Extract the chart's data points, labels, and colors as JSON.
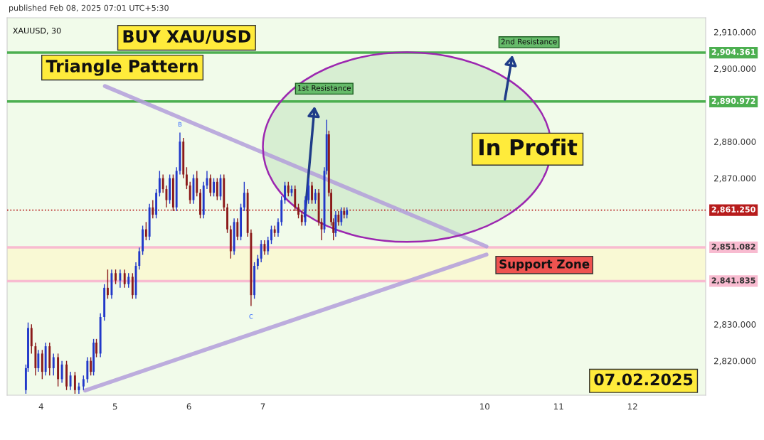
{
  "chart_data": {
    "type": "candlestick",
    "x": [
      3.794,
      3.824,
      3.87,
      3.924,
      3.962,
      4.015,
      4.061,
      4.115,
      4.168,
      4.229,
      4.282,
      4.344,
      4.397,
      4.458,
      4.511,
      4.573,
      4.626,
      4.672,
      4.71,
      4.748,
      4.802,
      4.855,
      4.901,
      4.954,
      5.008,
      5.069,
      5.13,
      5.183,
      5.237,
      5.282,
      5.328,
      5.374,
      5.42,
      5.466,
      5.511,
      5.557,
      5.603,
      5.649,
      5.695,
      5.74,
      5.786,
      5.832,
      5.878,
      5.924,
      5.969,
      6.015,
      6.061,
      6.107,
      6.153,
      6.198,
      6.244,
      6.29,
      6.336,
      6.382,
      6.427,
      6.473,
      6.519,
      6.565,
      6.611,
      6.656,
      6.702,
      6.748,
      6.794,
      6.84,
      6.885,
      6.931,
      6.977,
      7.023,
      7.069,
      7.115,
      7.16,
      7.206,
      7.252,
      7.298,
      7.344,
      7.389,
      7.435,
      7.481,
      7.527,
      7.573,
      7.618,
      7.664,
      7.71,
      7.756,
      7.794,
      7.832,
      7.863,
      7.893,
      7.924,
      7.954,
      7.985,
      8.023,
      8.061,
      8.099,
      8.137
    ],
    "ohlc": [
      [
        2812,
        2819,
        2811,
        2818
      ],
      [
        2818,
        2830.5,
        2817,
        2829
      ],
      [
        2829,
        2830,
        2822,
        2824
      ],
      [
        2824,
        2825,
        2816,
        2818
      ],
      [
        2818,
        2823,
        2817,
        2822
      ],
      [
        2822,
        2823,
        2815,
        2817
      ],
      [
        2817,
        2825,
        2816,
        2824
      ],
      [
        2824,
        2825,
        2816,
        2818
      ],
      [
        2818,
        2822,
        2816,
        2821
      ],
      [
        2821,
        2822,
        2813,
        2815
      ],
      [
        2815,
        2820,
        2814,
        2819
      ],
      [
        2819,
        2820,
        2812,
        2813
      ],
      [
        2813,
        2817,
        2812,
        2816
      ],
      [
        2816,
        2817,
        2811,
        2812
      ],
      [
        2812,
        2814,
        2811,
        2813
      ],
      [
        2813,
        2816,
        2812,
        2815
      ],
      [
        2815,
        2821,
        2814,
        2820
      ],
      [
        2820,
        2821,
        2816,
        2817
      ],
      [
        2817,
        2826,
        2816,
        2825
      ],
      [
        2825,
        2826,
        2821,
        2822
      ],
      [
        2822,
        2833,
        2821,
        2832
      ],
      [
        2832,
        2841,
        2831,
        2840
      ],
      [
        2840,
        2845,
        2837,
        2838
      ],
      [
        2838,
        2845,
        2837,
        2844
      ],
      [
        2844,
        2845,
        2841,
        2842
      ],
      [
        2842,
        2845,
        2840,
        2844
      ],
      [
        2844,
        2845,
        2840,
        2841
      ],
      [
        2841,
        2844,
        2840,
        2843
      ],
      [
        2843,
        2844,
        2837,
        2838
      ],
      [
        2838,
        2847,
        2837,
        2846
      ],
      [
        2846,
        2851,
        2845,
        2850
      ],
      [
        2850,
        2857,
        2849,
        2856
      ],
      [
        2856,
        2858,
        2853,
        2854
      ],
      [
        2854,
        2863,
        2853,
        2862
      ],
      [
        2862,
        2864,
        2859,
        2860
      ],
      [
        2860,
        2867,
        2859,
        2866
      ],
      [
        2866,
        2872,
        2865,
        2870
      ],
      [
        2870,
        2871,
        2866,
        2867
      ],
      [
        2867,
        2868,
        2862,
        2864
      ],
      [
        2864,
        2871,
        2863,
        2870
      ],
      [
        2870,
        2871,
        2861,
        2862
      ],
      [
        2862,
        2873,
        2861,
        2872
      ],
      [
        2872,
        2882.5,
        2871,
        2880
      ],
      [
        2880,
        2881,
        2870,
        2871
      ],
      [
        2871,
        2873,
        2867,
        2868
      ],
      [
        2868,
        2869,
        2863,
        2864
      ],
      [
        2864,
        2871,
        2863,
        2870
      ],
      [
        2870,
        2872,
        2865,
        2866
      ],
      [
        2866,
        2867,
        2859,
        2860
      ],
      [
        2860,
        2869,
        2859,
        2868
      ],
      [
        2868,
        2872,
        2867,
        2870
      ],
      [
        2870,
        2871,
        2865,
        2866
      ],
      [
        2866,
        2870,
        2865,
        2869
      ],
      [
        2869,
        2870,
        2864,
        2865
      ],
      [
        2865,
        2871,
        2864,
        2870
      ],
      [
        2870,
        2871,
        2861,
        2862
      ],
      [
        2862,
        2863,
        2855,
        2856
      ],
      [
        2856,
        2857,
        2848,
        2850
      ],
      [
        2850,
        2859,
        2849,
        2858
      ],
      [
        2858,
        2859,
        2853,
        2854
      ],
      [
        2854,
        2863,
        2853,
        2862
      ],
      [
        2862,
        2869,
        2861,
        2866
      ],
      [
        2866,
        2867,
        2854,
        2855
      ],
      [
        2855,
        2856,
        2835,
        2838
      ],
      [
        2838,
        2847,
        2837,
        2846
      ],
      [
        2846,
        2849,
        2845,
        2848
      ],
      [
        2848,
        2853,
        2847,
        2852
      ],
      [
        2852,
        2853,
        2849,
        2850
      ],
      [
        2850,
        2854,
        2849,
        2853
      ],
      [
        2853,
        2857,
        2852,
        2856
      ],
      [
        2856,
        2857,
        2854,
        2855
      ],
      [
        2855,
        2859,
        2854,
        2858
      ],
      [
        2858,
        2865,
        2857,
        2864
      ],
      [
        2864,
        2869,
        2863,
        2868
      ],
      [
        2868,
        2869,
        2865,
        2866
      ],
      [
        2866,
        2868,
        2865,
        2867
      ],
      [
        2867,
        2868,
        2861,
        2862
      ],
      [
        2862,
        2863,
        2859,
        2860
      ],
      [
        2860,
        2861,
        2857,
        2858
      ],
      [
        2858,
        2865,
        2857,
        2864
      ],
      [
        2864,
        2870,
        2863,
        2868
      ],
      [
        2868,
        2869,
        2863,
        2864
      ],
      [
        2864,
        2867,
        2863,
        2866
      ],
      [
        2866,
        2867,
        2857,
        2858
      ],
      [
        2858,
        2859,
        2853,
        2856
      ],
      [
        2856,
        2873,
        2855,
        2872
      ],
      [
        2872,
        2886,
        2871,
        2882
      ],
      [
        2882,
        2883,
        2865,
        2866
      ],
      [
        2866,
        2867,
        2857,
        2858
      ],
      [
        2858,
        2859,
        2853,
        2855
      ],
      [
        2855,
        2861,
        2854,
        2860
      ],
      [
        2860,
        2861,
        2857,
        2858
      ],
      [
        2858,
        2862,
        2857,
        2861
      ],
      [
        2861,
        2862,
        2859,
        2860
      ],
      [
        2860,
        2862,
        2859,
        2861.25
      ]
    ],
    "colors": [
      "#2138c9",
      "#2138c9",
      "#8b1a1a",
      "#8b1a1a",
      "#2138c9",
      "#8b1a1a",
      "#2138c9",
      "#8b1a1a",
      "#2138c9",
      "#8b1a1a",
      "#2138c9",
      "#8b1a1a",
      "#2138c9",
      "#8b1a1a",
      "#2138c9",
      "#2138c9",
      "#2138c9",
      "#8b1a1a",
      "#2138c9",
      "#8b1a1a",
      "#2138c9",
      "#2138c9",
      "#8b1a1a",
      "#2138c9",
      "#8b1a1a",
      "#2138c9",
      "#8b1a1a",
      "#2138c9",
      "#8b1a1a",
      "#2138c9",
      "#2138c9",
      "#2138c9",
      "#8b1a1a",
      "#2138c9",
      "#8b1a1a",
      "#2138c9",
      "#2138c9",
      "#8b1a1a",
      "#8b1a1a",
      "#2138c9",
      "#8b1a1a",
      "#2138c9",
      "#2138c9",
      "#8b1a1a",
      "#8b1a1a",
      "#8b1a1a",
      "#2138c9",
      "#8b1a1a",
      "#8b1a1a",
      "#2138c9",
      "#2138c9",
      "#8b1a1a",
      "#2138c9",
      "#8b1a1a",
      "#2138c9",
      "#8b1a1a",
      "#8b1a1a",
      "#8b1a1a",
      "#2138c9",
      "#8b1a1a",
      "#2138c9",
      "#2138c9",
      "#8b1a1a",
      "#8b1a1a",
      "#2138c9",
      "#2138c9",
      "#2138c9",
      "#8b1a1a",
      "#2138c9",
      "#2138c9",
      "#8b1a1a",
      "#2138c9",
      "#2138c9",
      "#2138c9",
      "#8b1a1a",
      "#2138c9",
      "#8b1a1a",
      "#8b1a1a",
      "#8b1a1a",
      "#2138c9",
      "#2138c9",
      "#8b1a1a",
      "#2138c9",
      "#8b1a1a",
      "#8b1a1a",
      "#2138c9",
      "#2138c9",
      "#8b1a1a",
      "#8b1a1a",
      "#8b1a1a",
      "#2138c9",
      "#8b1a1a",
      "#2138c9",
      "#8b1a1a",
      "#2138c9"
    ],
    "series": [
      {
        "type": "line",
        "color": "#b39ddb",
        "x": [
          4.863,
          10.025
        ],
        "values": [
          2895.2,
          2851.3
        ]
      },
      {
        "type": "line",
        "color": "#b39ddb",
        "x": [
          4.595,
          10.025
        ],
        "values": [
          2811.9,
          2849.1
        ]
      }
    ],
    "xlim": [
      3.54,
      12.99
    ],
    "ylim": [
      2810.6,
      2913.9
    ],
    "xticks": [
      4,
      5,
      6,
      7,
      10,
      11,
      12
    ],
    "yticks": [
      {
        "value": 2820,
        "label": "2,820.000"
      },
      {
        "value": 2830,
        "label": "2,830.000"
      },
      {
        "value": 2870,
        "label": "2,870.000"
      },
      {
        "value": 2880,
        "label": "2,880.000"
      },
      {
        "value": 2900,
        "label": "2,900.000"
      },
      {
        "value": 2910,
        "label": "2,910.000"
      }
    ],
    "ref_lines": [
      {
        "axis": "y",
        "value": 2904.361,
        "label": "2,904.361",
        "color": "#4caf50",
        "line_style": "solid"
      },
      {
        "axis": "y",
        "value": 2890.972,
        "label": "2,890.972",
        "color": "#4caf50",
        "line_style": "solid"
      },
      {
        "axis": "y",
        "value": 2861.25,
        "label": "2,861.250",
        "color": "#b71c1c",
        "line_style": "dotted"
      },
      {
        "axis": "y",
        "value": 2851.082,
        "label": "2,851.082",
        "color": "#f8bbd0",
        "line_style": "solid"
      },
      {
        "axis": "y",
        "value": 2841.835,
        "label": "2,841.835",
        "color": "#f8bbd0",
        "line_style": "solid"
      }
    ],
    "bands": [
      {
        "axis": "y",
        "from": 2841.835,
        "to": 2851.082,
        "color": "#fff9c4"
      }
    ],
    "annotations": [
      "XAUUSD, 30",
      "BUY XAU/USD",
      "Triangle Pattern",
      "In Profit",
      "Support Zone",
      "07.02.2025",
      "published Feb 08, 2025 07:01 UTC+5:30",
      "1st Resistance",
      "2nd Resistance",
      "B",
      "C"
    ]
  }
}
